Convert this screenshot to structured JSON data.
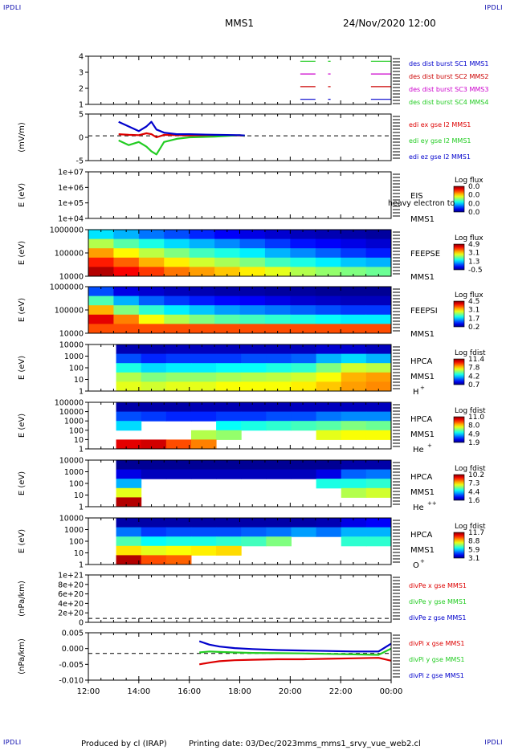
{
  "header": {
    "corner_label": "IPDLI",
    "spacecraft": "MMS1",
    "datetime": "24/Nov/2020 12:00"
  },
  "footer": {
    "produced_by": "Produced by cl (IRAP)",
    "printing_date": "Printing date: 03/Dec/2023",
    "filename": "mms_mms1_srvy_vue_web2.cl"
  },
  "colors": {
    "mms1": "#0000cc",
    "mms2": "#cc0000",
    "mms3": "#cc00cc",
    "mms4": "#22cc22",
    "x_comp": "#dd0000",
    "y_comp": "#22cc22",
    "z_comp": "#0000cc"
  },
  "time_axis": {
    "ticks": [
      "12:00",
      "14:00",
      "16:00",
      "18:00",
      "20:00",
      "22:00",
      "00:00"
    ],
    "range_hours": [
      12,
      24
    ]
  },
  "chart_data": [
    {
      "type": "line",
      "id": "burst",
      "ylabel": "",
      "yticks": [
        "4",
        "3",
        "2",
        "1"
      ],
      "ylim": [
        0.6,
        4.4
      ],
      "grid": false,
      "series": [
        {
          "name": "des dist burst SC1 MMS1",
          "level": 1,
          "color": "#0000cc",
          "intervals": [
            [
              20.4,
              21.0
            ],
            [
              21.5,
              21.6
            ],
            [
              23.2,
              24.0
            ]
          ]
        },
        {
          "name": "des dist burst SC2 MMS2",
          "level": 2,
          "color": "#cc0000",
          "intervals": [
            [
              20.4,
              21.0
            ],
            [
              21.5,
              21.6
            ],
            [
              23.2,
              24.0
            ]
          ]
        },
        {
          "name": "des dist burst SC3 MMS3",
          "level": 3,
          "color": "#cc00cc",
          "intervals": [
            [
              20.4,
              21.0
            ],
            [
              21.5,
              21.6
            ],
            [
              23.2,
              24.0
            ]
          ]
        },
        {
          "name": "des dist burst SC4 MMS4",
          "level": 4,
          "color": "#22cc22",
          "intervals": [
            [
              20.4,
              21.0
            ],
            [
              21.5,
              21.6
            ],
            [
              23.2,
              24.0
            ]
          ]
        }
      ]
    },
    {
      "type": "line",
      "id": "edi",
      "ylabel": "(mV/m)",
      "yticks": [
        "5",
        "0",
        "-5"
      ],
      "ylim": [
        -8,
        7
      ],
      "reference_line": 0,
      "series": [
        {
          "name": "edi ex gse l2 MMS1",
          "color": "#dd0000",
          "x": [
            13.2,
            13.6,
            14.0,
            14.3,
            14.5,
            14.7,
            15.0,
            15.5,
            16.0,
            17.0,
            18.0,
            18.2
          ],
          "y": [
            0.5,
            0.3,
            0.2,
            0.8,
            0.5,
            -0.5,
            0.3,
            0.2,
            0.1,
            0.1,
            0.1,
            0.0
          ]
        },
        {
          "name": "edi ey gse l2 MMS1",
          "color": "#22cc22",
          "x": [
            13.2,
            13.6,
            14.0,
            14.3,
            14.5,
            14.7,
            15.0,
            15.5,
            16.0,
            17.0,
            18.0,
            18.2
          ],
          "y": [
            -1.5,
            -3.0,
            -2.0,
            -3.5,
            -5.0,
            -6.0,
            -2.0,
            -1.0,
            -0.5,
            -0.3,
            0.2,
            0.0
          ]
        },
        {
          "name": "edi ez gse l2 MMS1",
          "color": "#0000cc",
          "x": [
            13.2,
            13.6,
            14.0,
            14.3,
            14.5,
            14.7,
            15.0,
            15.5,
            16.0,
            17.0,
            18.0,
            18.2
          ],
          "y": [
            4.5,
            3.0,
            1.5,
            3.0,
            4.5,
            2.0,
            1.0,
            0.5,
            0.5,
            0.3,
            0.2,
            0.1
          ]
        }
      ]
    },
    {
      "type": "heatmap",
      "id": "eis",
      "ylabel": "E (eV)",
      "yticks": [
        "1e+07",
        "1e+06",
        "1e+05",
        "1e+04"
      ],
      "yscale": "log",
      "instrument": "EIS",
      "spacecraft": "MMS1",
      "title_fragment": "heavy electron to",
      "colorbar": {
        "label": "Log flux",
        "ticks": [
          "0.0",
          "0.0",
          "0.0",
          "0.0"
        ]
      },
      "empty": true
    },
    {
      "type": "heatmap",
      "id": "feepse",
      "ylabel": "E (eV)",
      "yticks": [
        "1000000",
        "100000",
        "10000"
      ],
      "yscale": "log",
      "instrument": "FEEPSE",
      "spacecraft": "MMS1",
      "colorbar": {
        "label": "Log flux",
        "ticks": [
          "4.9",
          "3.1",
          "1.3",
          "-0.5"
        ]
      },
      "rows": [
        [
          0.35,
          0.3,
          0.24,
          0.2,
          0.16,
          0.12,
          0.1,
          0.08,
          0.06,
          0.05,
          0.04,
          0.03
        ],
        [
          0.55,
          0.46,
          0.4,
          0.34,
          0.3,
          0.26,
          0.22,
          0.18,
          0.14,
          0.12,
          0.1,
          0.08
        ],
        [
          0.72,
          0.63,
          0.56,
          0.5,
          0.44,
          0.4,
          0.36,
          0.3,
          0.26,
          0.22,
          0.18,
          0.15
        ],
        [
          0.85,
          0.78,
          0.7,
          0.64,
          0.58,
          0.54,
          0.5,
          0.44,
          0.4,
          0.36,
          0.32,
          0.3
        ],
        [
          0.95,
          0.88,
          0.82,
          0.76,
          0.72,
          0.68,
          0.64,
          0.6,
          0.55,
          0.52,
          0.5,
          0.48
        ]
      ]
    },
    {
      "type": "heatmap",
      "id": "feepsi",
      "ylabel": "E (eV)",
      "yticks": [
        "1000000",
        "100000",
        "10000"
      ],
      "yscale": "log",
      "instrument": "FEEPSI",
      "spacecraft": "MMS1",
      "colorbar": {
        "label": "Log flux",
        "ticks": [
          "4.5",
          "3.1",
          "1.7",
          "0.2"
        ]
      },
      "rows": [
        [
          0.2,
          0.1,
          0.08,
          0.06,
          0.05,
          0.04,
          0.04,
          0.03,
          0.03,
          0.02,
          0.02,
          0.02
        ],
        [
          0.45,
          0.3,
          0.22,
          0.18,
          0.15,
          0.13,
          0.12,
          0.1,
          0.08,
          0.07,
          0.06,
          0.06
        ],
        [
          0.7,
          0.5,
          0.42,
          0.36,
          0.32,
          0.28,
          0.26,
          0.24,
          0.22,
          0.2,
          0.18,
          0.18
        ],
        [
          0.9,
          0.75,
          0.62,
          0.55,
          0.5,
          0.46,
          0.44,
          0.42,
          0.4,
          0.38,
          0.36,
          0.36
        ],
        [
          0.8,
          0.8,
          0.8,
          0.8,
          0.8,
          0.8,
          0.8,
          0.8,
          0.8,
          0.8,
          0.8,
          0.8
        ]
      ]
    },
    {
      "type": "heatmap",
      "id": "hpca_h",
      "ylabel": "E (eV)",
      "yticks": [
        "10000",
        "1000",
        "100",
        "10",
        "1"
      ],
      "yscale": "log",
      "instrument": "HPCA",
      "spacecraft": "MMS1",
      "species": "H",
      "charge": "+",
      "data_start_hour": 13.1,
      "colorbar": {
        "label": "Log fdist",
        "ticks": [
          "11.4",
          "7.8",
          "4.2",
          "0.7"
        ]
      },
      "rows": [
        [
          0.05,
          0.05,
          0.06,
          0.06,
          0.06,
          0.06,
          0.06,
          0.06,
          0.08,
          0.08,
          0.06
        ],
        [
          0.2,
          0.16,
          0.18,
          0.18,
          0.18,
          0.2,
          0.2,
          0.22,
          0.3,
          0.34,
          0.3
        ],
        [
          0.4,
          0.34,
          0.36,
          0.36,
          0.38,
          0.38,
          0.4,
          0.42,
          0.5,
          0.58,
          0.56
        ],
        [
          0.55,
          0.5,
          0.52,
          0.52,
          0.54,
          0.55,
          0.56,
          0.58,
          0.62,
          0.7,
          0.72
        ],
        [
          0.6,
          0.58,
          0.6,
          0.6,
          0.62,
          0.62,
          0.62,
          0.64,
          0.68,
          0.72,
          0.74
        ]
      ]
    },
    {
      "type": "heatmap",
      "id": "hpca_he",
      "ylabel": "E (eV)",
      "yticks": [
        "100000",
        "10000",
        "1000",
        "100",
        "10",
        "1"
      ],
      "yscale": "log",
      "instrument": "HPCA",
      "spacecraft": "MMS1",
      "species": "He",
      "charge": "+",
      "data_start_hour": 13.1,
      "colorbar": {
        "label": "Log fdist",
        "ticks": [
          "11.0",
          "8.0",
          "4.9",
          "1.9"
        ]
      },
      "rows": [
        [
          0.04,
          0.04,
          0.04,
          0.05,
          0.05,
          0.05,
          0.05,
          0.06,
          0.06,
          0.06,
          0.06
        ],
        [
          0.2,
          0.18,
          0.16,
          0.16,
          0.18,
          0.18,
          0.2,
          0.2,
          0.24,
          0.26,
          0.26
        ],
        [
          0.34,
          -1.0,
          -1.0,
          -1.0,
          0.38,
          0.4,
          0.42,
          0.44,
          0.46,
          0.5,
          0.48
        ],
        [
          -1.0,
          -1.0,
          -1.0,
          0.55,
          0.52,
          -1.0,
          -1.0,
          -1.0,
          0.6,
          0.62,
          0.62
        ],
        [
          0.9,
          0.92,
          0.8,
          0.75,
          -1.0,
          -1.0,
          -1.0,
          -1.0,
          -1.0,
          -1.0,
          -1.0
        ]
      ]
    },
    {
      "type": "heatmap",
      "id": "hpca_hepp",
      "ylabel": "E (eV)",
      "yticks": [
        "10000",
        "1000",
        "100",
        "10",
        "1"
      ],
      "yscale": "log",
      "instrument": "HPCA",
      "spacecraft": "MMS1",
      "species": "He",
      "charge": "++",
      "data_start_hour": 13.1,
      "colorbar": {
        "label": "Log fdist",
        "ticks": [
          "10.2",
          "7.3",
          "4.4",
          "1.6"
        ]
      },
      "rows": [
        [
          0.02,
          0.02,
          0.02,
          0.02,
          0.02,
          0.02,
          0.02,
          0.02,
          0.02,
          0.04,
          0.04
        ],
        [
          0.1,
          0.06,
          0.06,
          0.06,
          0.06,
          0.06,
          0.06,
          0.06,
          0.1,
          0.22,
          0.24
        ],
        [
          0.3,
          -1.0,
          -1.0,
          -1.0,
          -1.0,
          -1.0,
          -1.0,
          -1.0,
          0.4,
          0.4,
          0.42
        ],
        [
          0.6,
          -1.0,
          -1.0,
          -1.0,
          -1.0,
          -1.0,
          -1.0,
          -1.0,
          -1.0,
          0.55,
          0.58
        ],
        [
          0.95,
          -1.0,
          -1.0,
          -1.0,
          -1.0,
          -1.0,
          -1.0,
          -1.0,
          -1.0,
          -1.0,
          -1.0
        ]
      ]
    },
    {
      "type": "heatmap",
      "id": "hpca_o",
      "ylabel": "E (eV)",
      "yticks": [
        "10000",
        "1000",
        "100",
        "10",
        "1"
      ],
      "yscale": "log",
      "instrument": "HPCA",
      "spacecraft": "MMS1",
      "species": "O",
      "charge": "+",
      "data_start_hour": 13.1,
      "colorbar": {
        "label": "Log fdist",
        "ticks": [
          "11.7",
          "8.8",
          "5.9",
          "3.1"
        ]
      },
      "rows": [
        [
          0.04,
          0.04,
          0.04,
          0.04,
          0.04,
          0.04,
          0.04,
          0.04,
          0.05,
          0.1,
          0.12
        ],
        [
          0.24,
          0.18,
          0.2,
          0.2,
          0.2,
          0.22,
          0.24,
          0.28,
          0.24,
          0.3,
          0.3
        ],
        [
          0.45,
          0.38,
          0.4,
          0.4,
          0.42,
          0.44,
          0.5,
          -1.0,
          -1.0,
          0.42,
          0.42
        ],
        [
          0.65,
          0.6,
          0.62,
          0.64,
          0.66,
          -1.0,
          -1.0,
          -1.0,
          -1.0,
          -1.0,
          -1.0
        ],
        [
          0.95,
          0.8,
          0.78,
          -1.0,
          -1.0,
          -1.0,
          -1.0,
          -1.0,
          -1.0,
          -1.0,
          -1.0
        ]
      ]
    },
    {
      "type": "line",
      "id": "divpe",
      "ylabel": "(nPa/km)",
      "yticks": [
        "1e+21",
        "8e+20",
        "6e+20",
        "4e+20",
        "2e+20",
        "0"
      ],
      "ylim": [
        -1e+20,
        1.1e+21
      ],
      "reference_line": 0,
      "series": [
        {
          "name": "divPe x gse MMS1",
          "color": "#dd0000",
          "x": [],
          "y": []
        },
        {
          "name": "divPe y gse MMS1",
          "color": "#22cc22",
          "x": [],
          "y": []
        },
        {
          "name": "divPe z gse MMS1",
          "color": "#0000cc",
          "x": [],
          "y": []
        }
      ]
    },
    {
      "type": "line",
      "id": "divpi",
      "ylabel": "(nPa/km)",
      "yticks": [
        "0.005",
        "0.000",
        "-0.005",
        "-0.010"
      ],
      "ylim": [
        -0.011,
        0.0085
      ],
      "reference_line": 0,
      "series": [
        {
          "name": "divPi x gse MMS1",
          "color": "#dd0000",
          "x": [
            16.4,
            16.8,
            17.2,
            17.8,
            18.5,
            19.5,
            20.5,
            21.5,
            22.5,
            23.5,
            24.0
          ],
          "y": [
            -0.0045,
            -0.0038,
            -0.0032,
            -0.0028,
            -0.0026,
            -0.0024,
            -0.0024,
            -0.0022,
            -0.002,
            -0.0018,
            -0.003
          ]
        },
        {
          "name": "divPi y gse MMS1",
          "color": "#22cc22",
          "x": [
            16.4,
            16.8,
            17.2,
            17.8,
            18.5,
            19.5,
            20.5,
            21.5,
            22.5,
            23.5,
            24.0
          ],
          "y": [
            0.0004,
            0.0008,
            0.0006,
            0.0004,
            0.0002,
            0.0001,
            0.0,
            -0.0002,
            -0.0004,
            -0.0006,
            0.002
          ]
        },
        {
          "name": "divPi z gse MMS1",
          "color": "#0000cc",
          "x": [
            16.4,
            16.8,
            17.2,
            17.8,
            18.5,
            19.5,
            20.5,
            21.5,
            22.5,
            23.5,
            24.0
          ],
          "y": [
            0.005,
            0.0036,
            0.0028,
            0.0022,
            0.0018,
            0.0014,
            0.0012,
            0.001,
            0.0008,
            0.0008,
            0.004
          ]
        }
      ]
    }
  ]
}
